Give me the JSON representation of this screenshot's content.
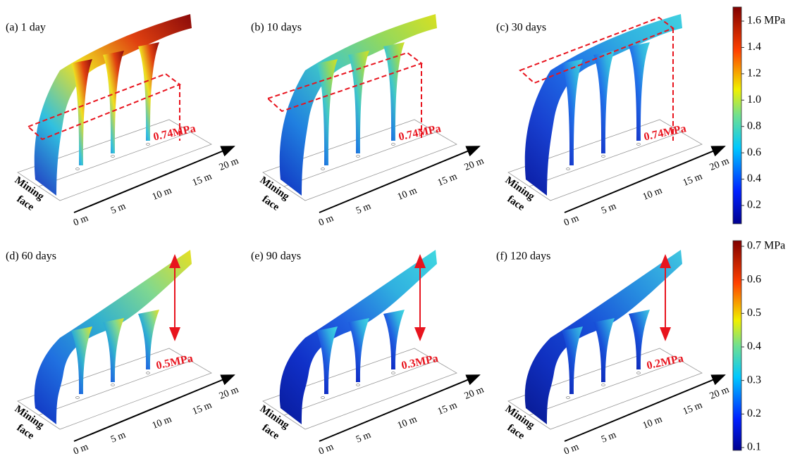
{
  "panels": [
    {
      "label": "(a) 1 day",
      "annotation": "0.74MPa"
    },
    {
      "label": "(b) 10 days",
      "annotation": "0.74MPa"
    },
    {
      "label": "(c) 30 days",
      "annotation": "0.74MPa"
    },
    {
      "label": "(d) 60 days",
      "annotation": "0.5MPa"
    },
    {
      "label": "(e) 90 days",
      "annotation": "0.3MPa"
    },
    {
      "label": "(f) 120 days",
      "annotation": "0.2MPa"
    }
  ],
  "axis": {
    "ticks": [
      "0 m",
      "5 m",
      "10 m",
      "15 m",
      "20 m"
    ],
    "face": [
      "Mining",
      "face"
    ]
  },
  "colorbars": [
    {
      "ticks": [
        "1.6 MPa",
        "1.4",
        "1.2",
        "1.0",
        "0.8",
        "0.6",
        "0.4",
        "0.2"
      ]
    },
    {
      "ticks": [
        "0.7 MPa",
        "0.6",
        "0.5",
        "0.4",
        "0.3",
        "0.2",
        "0.1"
      ]
    }
  ]
}
